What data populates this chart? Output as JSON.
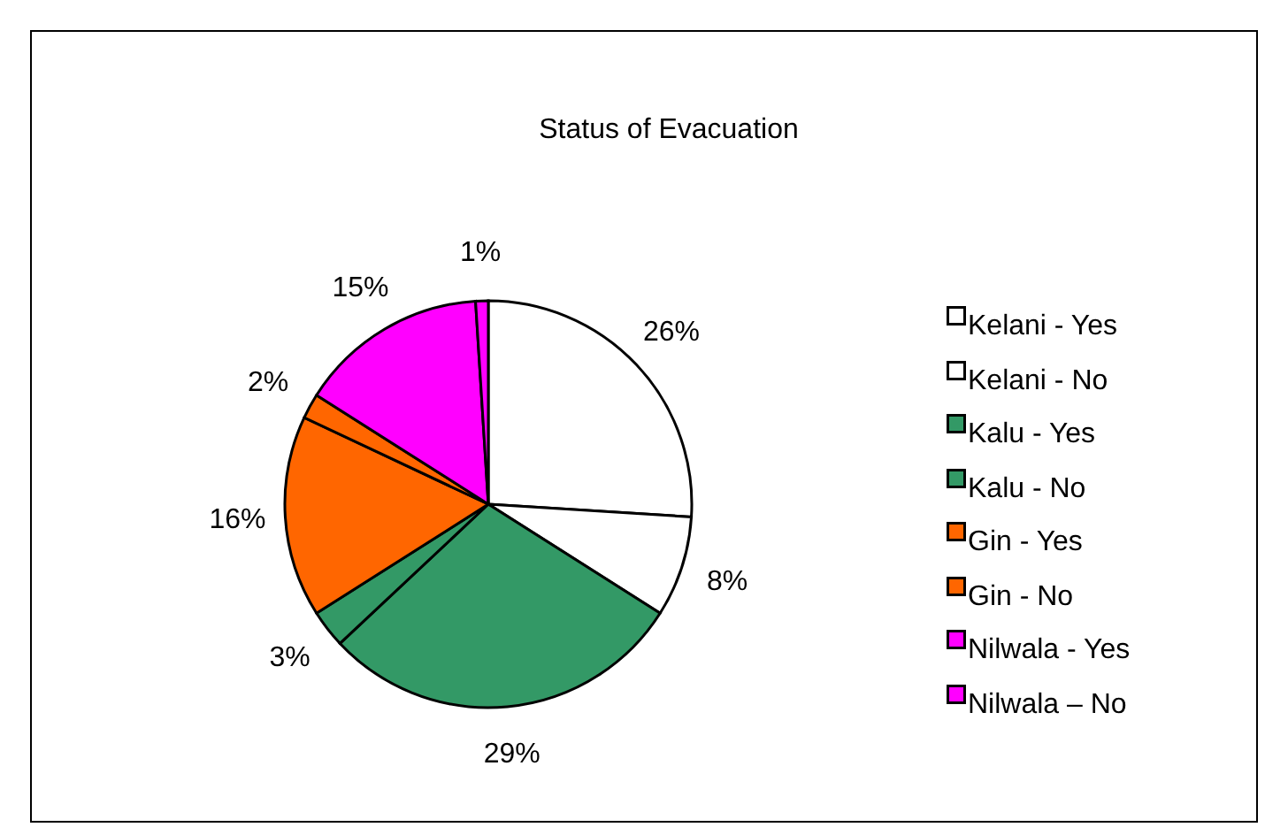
{
  "chart_data": {
    "type": "pie",
    "title": "Status of Evacuation",
    "categories": [
      "Kelani - Yes",
      "Kelani - No",
      "Kalu - Yes",
      "Kalu - No",
      "Gin - Yes",
      "Gin - No",
      "Nilwala - Yes",
      "Nilwala – No"
    ],
    "values": [
      26,
      8,
      29,
      3,
      16,
      2,
      15,
      1
    ],
    "colors": [
      "#ffffff",
      "#ffffff",
      "#339966",
      "#339966",
      "#ff6600",
      "#ff6600",
      "#ff00ff",
      "#ff00ff"
    ],
    "value_labels": [
      "26%",
      "8%",
      "29%",
      "3%",
      "16%",
      "2%",
      "15%",
      "1%"
    ],
    "legend": "right"
  }
}
